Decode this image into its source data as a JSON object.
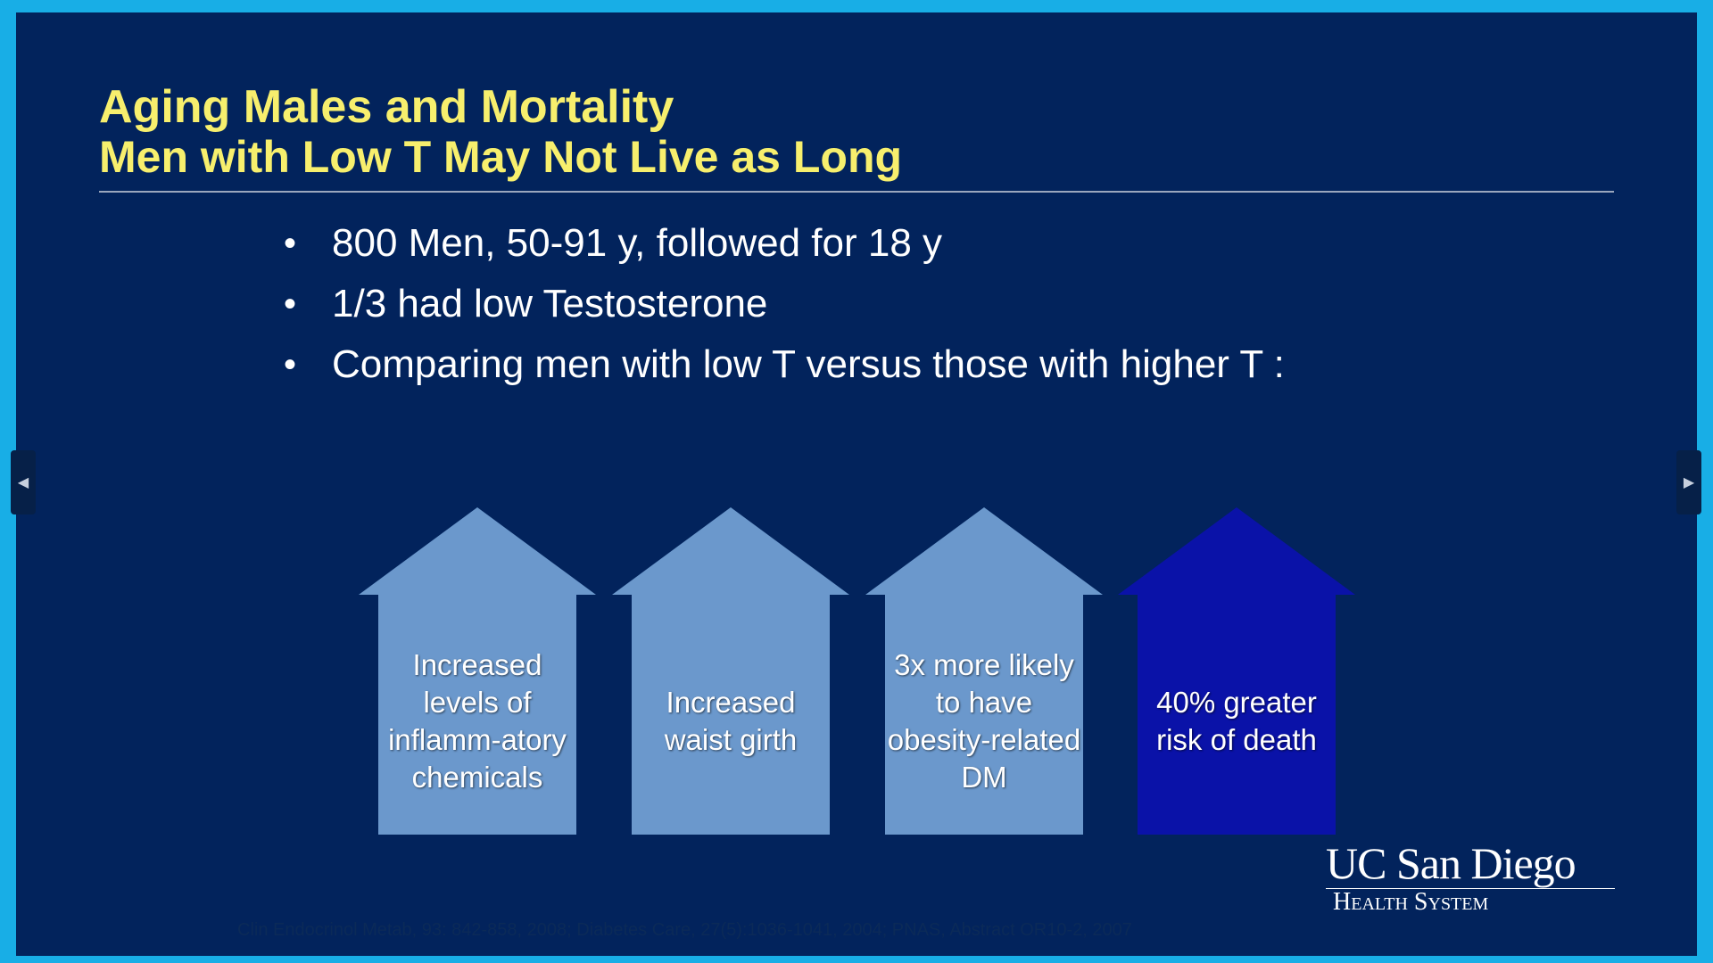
{
  "slide": {
    "title": "Aging Males and Mortality",
    "subtitle": "Men with Low T May Not Live as Long",
    "bullets": [
      "800 Men, 50-91 y, followed for 18 y",
      "1/3 had low Testosterone",
      "Comparing men with low T versus those with higher T :"
    ],
    "bullet_marker": "•",
    "arrows": [
      {
        "label": "Increased levels of inflamm-atory chemicals",
        "color": "#6b98cc"
      },
      {
        "label": "Increased waist girth",
        "color": "#6b98cc"
      },
      {
        "label": "3x more likely to have obesity-related DM",
        "color": "#6b98cc"
      },
      {
        "label": "40% greater risk of death",
        "color": "#0a12a8"
      }
    ],
    "logo": {
      "line1": "UC San Diego",
      "line2": "Health System"
    },
    "citation": "Clin Endocrinol Metab, 93: 842-858, 2008; Diabetes Care, 27(5):1036-1041, 2004; PNAS, Abstract OR10-2, 2007"
  },
  "colors": {
    "frame": "#18aee6",
    "background": "#02235c",
    "title": "#f7ef6d",
    "text": "#ffffff"
  },
  "nav": {
    "prev_icon": "chevron-left-icon",
    "next_icon": "chevron-right-icon",
    "prev_glyph": "◀",
    "next_glyph": "▶"
  }
}
